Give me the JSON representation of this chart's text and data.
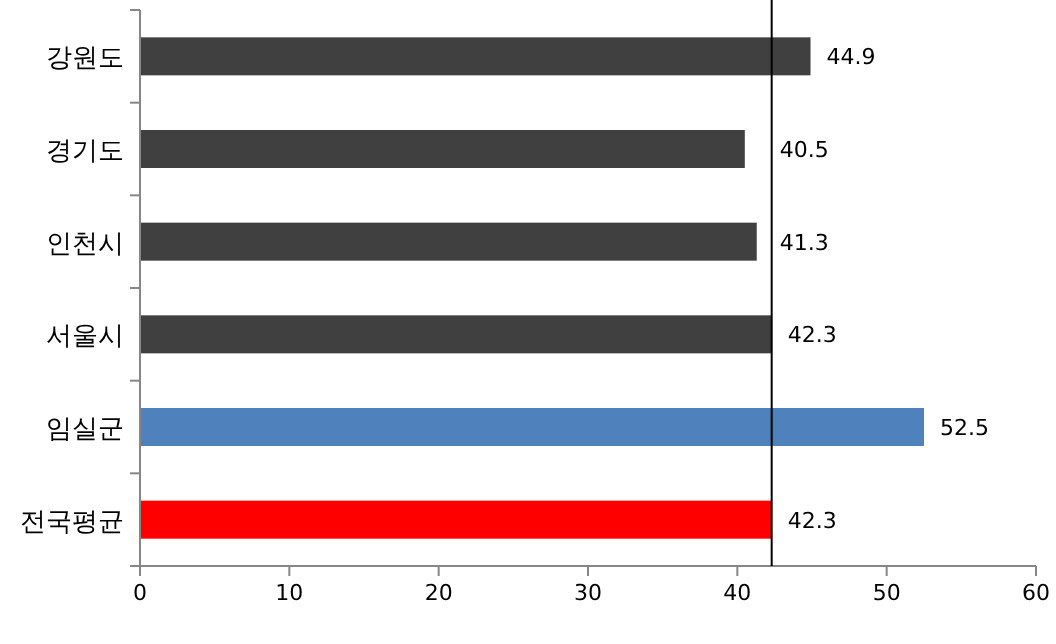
{
  "chart_data": {
    "type": "bar",
    "orientation": "horizontal",
    "categories": [
      "강원도",
      "경기도",
      "인천시",
      "서울시",
      "임실군",
      "전국평균"
    ],
    "values": [
      44.9,
      40.5,
      41.3,
      42.3,
      52.5,
      42.3
    ],
    "colors": [
      "#404040",
      "#404040",
      "#404040",
      "#404040",
      "#4f81bd",
      "#ff0000"
    ],
    "xlim": [
      0,
      60
    ],
    "xticks": [
      0,
      10,
      20,
      30,
      40,
      50,
      60
    ],
    "ref_lines": [
      {
        "axis": "x",
        "value": 42.3,
        "color": "#000000"
      }
    ],
    "data_labels": true
  }
}
